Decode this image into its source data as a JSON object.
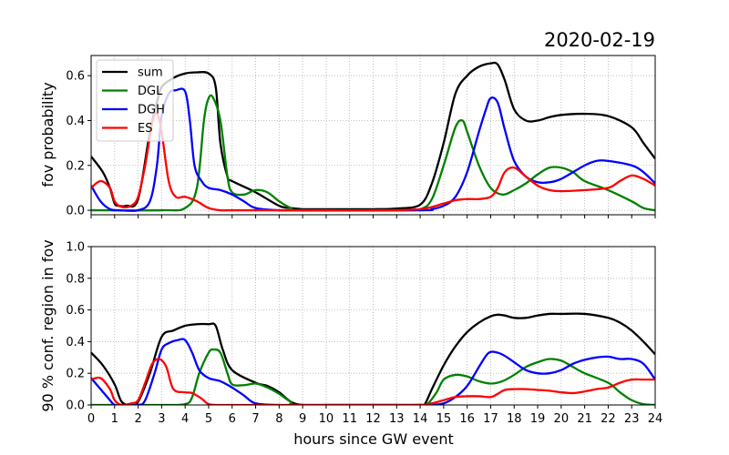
{
  "chart_data": [
    {
      "type": "line",
      "title": "2020-02-19",
      "ylabel": "fov probability",
      "xlabel": "",
      "xlim": [
        0,
        24
      ],
      "ylim": [
        -0.02,
        0.69
      ],
      "yticks": [
        "0.0",
        "0.2",
        "0.4",
        "0.6"
      ],
      "ytick_values": [
        0,
        0.2,
        0.4,
        0.6
      ],
      "grid": true,
      "legend_placement": "top-left",
      "series": [
        {
          "name": "sum",
          "color": "#000000",
          "x": [
            0,
            0.5,
            0.8,
            1,
            1.2,
            1.5,
            2,
            2.5,
            2.8,
            3,
            3.5,
            4,
            4.5,
            5,
            5.3,
            5.5,
            5.8,
            6,
            7,
            8,
            8.5,
            9,
            10,
            11,
            12,
            13,
            14,
            14.5,
            15,
            15.5,
            16,
            16.5,
            17,
            17.3,
            17.6,
            18,
            18.5,
            19,
            19.5,
            20,
            21,
            22,
            23,
            23.5,
            24
          ],
          "y": [
            0.24,
            0.17,
            0.1,
            0.03,
            0.02,
            0.02,
            0.05,
            0.35,
            0.48,
            0.55,
            0.59,
            0.61,
            0.615,
            0.61,
            0.55,
            0.3,
            0.15,
            0.13,
            0.08,
            0.02,
            0.01,
            0.005,
            0.005,
            0.005,
            0.005,
            0.008,
            0.025,
            0.12,
            0.3,
            0.52,
            0.6,
            0.64,
            0.655,
            0.65,
            0.58,
            0.45,
            0.4,
            0.4,
            0.415,
            0.425,
            0.43,
            0.42,
            0.37,
            0.3,
            0.23
          ]
        },
        {
          "name": "DGL",
          "color": "#008000",
          "x": [
            0,
            3,
            4,
            4.5,
            4.8,
            5,
            5.2,
            5.5,
            5.8,
            6,
            6.5,
            7,
            7.5,
            8,
            8.5,
            9,
            13,
            14,
            14.5,
            15,
            15.5,
            15.8,
            16,
            16.5,
            17,
            17.5,
            18,
            18.5,
            19,
            19.5,
            20,
            20.5,
            21,
            22,
            23,
            23.5,
            24
          ],
          "y": [
            0,
            0,
            0.01,
            0.1,
            0.4,
            0.5,
            0.5,
            0.4,
            0.15,
            0.08,
            0.07,
            0.09,
            0.08,
            0.04,
            0.01,
            0,
            0,
            0.005,
            0.05,
            0.2,
            0.37,
            0.4,
            0.35,
            0.2,
            0.1,
            0.07,
            0.09,
            0.12,
            0.16,
            0.19,
            0.19,
            0.17,
            0.13,
            0.09,
            0.04,
            0.01,
            0
          ]
        },
        {
          "name": "DGH",
          "color": "#0000ff",
          "x": [
            0,
            0.4,
            0.8,
            1.2,
            2,
            2.5,
            2.8,
            3,
            3.3,
            3.6,
            4,
            4.2,
            4.4,
            4.7,
            5,
            5.5,
            6,
            6.5,
            7,
            8,
            9,
            14,
            14.5,
            15,
            15.5,
            16,
            16.5,
            16.8,
            17,
            17.3,
            17.6,
            18,
            18.5,
            19,
            19.5,
            20,
            21,
            21.5,
            22,
            23,
            23.5,
            24
          ],
          "y": [
            0.11,
            0.04,
            0.005,
            0,
            0,
            0.04,
            0.2,
            0.42,
            0.52,
            0.535,
            0.53,
            0.4,
            0.2,
            0.13,
            0.1,
            0.09,
            0.07,
            0.04,
            0.01,
            0,
            0,
            0,
            0.005,
            0.02,
            0.06,
            0.17,
            0.35,
            0.45,
            0.5,
            0.48,
            0.36,
            0.22,
            0.15,
            0.125,
            0.125,
            0.14,
            0.2,
            0.22,
            0.22,
            0.2,
            0.17,
            0.12
          ]
        },
        {
          "name": "ES",
          "color": "#ff0000",
          "x": [
            0,
            0.4,
            0.8,
            1,
            1.3,
            1.7,
            2,
            2.3,
            2.6,
            2.8,
            3,
            3.3,
            3.6,
            4,
            4.5,
            5,
            5.5,
            6,
            8,
            10,
            12,
            14,
            15,
            15.5,
            16,
            16.5,
            17,
            17.3,
            17.6,
            18,
            18.5,
            19,
            19.5,
            20,
            21,
            22,
            22.5,
            23,
            23.5,
            24
          ],
          "y": [
            0.1,
            0.13,
            0.1,
            0.04,
            0.015,
            0.02,
            0.06,
            0.2,
            0.39,
            0.43,
            0.35,
            0.13,
            0.06,
            0.06,
            0.04,
            0.01,
            0,
            0,
            0,
            0,
            0,
            0.005,
            0.03,
            0.045,
            0.05,
            0.05,
            0.06,
            0.1,
            0.17,
            0.19,
            0.15,
            0.11,
            0.09,
            0.085,
            0.09,
            0.1,
            0.13,
            0.155,
            0.14,
            0.11
          ]
        }
      ]
    },
    {
      "type": "line",
      "title": "",
      "ylabel": "90 % conf. region in fov",
      "xlabel": "hours since GW event",
      "xlim": [
        0,
        24
      ],
      "ylim": [
        0,
        1.0
      ],
      "xticks": [
        "0",
        "1",
        "2",
        "3",
        "4",
        "5",
        "6",
        "7",
        "8",
        "9",
        "10",
        "11",
        "12",
        "13",
        "14",
        "15",
        "16",
        "17",
        "18",
        "19",
        "20",
        "21",
        "22",
        "23",
        "24"
      ],
      "xtick_values": [
        0,
        1,
        2,
        3,
        4,
        5,
        6,
        7,
        8,
        9,
        10,
        11,
        12,
        13,
        14,
        15,
        16,
        17,
        18,
        19,
        20,
        21,
        22,
        23,
        24
      ],
      "yticks": [
        "0.0",
        "0.2",
        "0.4",
        "0.6",
        "0.8",
        "1.0"
      ],
      "ytick_values": [
        0,
        0.2,
        0.4,
        0.6,
        0.8,
        1.0
      ],
      "grid": true,
      "series": [
        {
          "name": "sum",
          "color": "#000000",
          "x": [
            0,
            0.5,
            1,
            1.3,
            1.7,
            2,
            2.5,
            3,
            3.5,
            4,
            4.5,
            5,
            5.3,
            5.6,
            6,
            7,
            7.5,
            8,
            8.5,
            9,
            10,
            12,
            14,
            14.2,
            14.5,
            15,
            15.5,
            16,
            16.5,
            17,
            17.3,
            17.6,
            18,
            18.5,
            19,
            19.5,
            20,
            21,
            22,
            22.5,
            23,
            23.5,
            24
          ],
          "y": [
            0.33,
            0.25,
            0.13,
            0.02,
            0,
            0.02,
            0.2,
            0.43,
            0.47,
            0.5,
            0.51,
            0.51,
            0.5,
            0.35,
            0.22,
            0.14,
            0.12,
            0.08,
            0.02,
            0,
            0,
            0,
            0,
            0.005,
            0.1,
            0.25,
            0.37,
            0.46,
            0.52,
            0.56,
            0.57,
            0.565,
            0.55,
            0.55,
            0.565,
            0.575,
            0.575,
            0.575,
            0.55,
            0.52,
            0.47,
            0.4,
            0.32
          ]
        },
        {
          "name": "DGL",
          "color": "#008000",
          "x": [
            0,
            3,
            4,
            4.3,
            4.6,
            5,
            5.2,
            5.5,
            5.8,
            6,
            6.5,
            7,
            7.5,
            8,
            8.5,
            9,
            14,
            14.3,
            14.7,
            15,
            15.5,
            16,
            16.5,
            17,
            17.5,
            18,
            18.5,
            19,
            19.5,
            20,
            20.5,
            21,
            22,
            22.5,
            23,
            23.5,
            24
          ],
          "y": [
            0,
            0,
            0.005,
            0.05,
            0.2,
            0.33,
            0.35,
            0.33,
            0.2,
            0.13,
            0.125,
            0.135,
            0.11,
            0.07,
            0.02,
            0,
            0,
            0.005,
            0.08,
            0.16,
            0.19,
            0.18,
            0.15,
            0.135,
            0.15,
            0.19,
            0.24,
            0.27,
            0.29,
            0.28,
            0.24,
            0.2,
            0.14,
            0.08,
            0.03,
            0.005,
            0
          ]
        },
        {
          "name": "DGH",
          "color": "#0000ff",
          "x": [
            0,
            0.4,
            0.8,
            1,
            1.3,
            2,
            2.3,
            2.7,
            3,
            3.3,
            3.7,
            4,
            4.3,
            4.6,
            5,
            5.5,
            6,
            6.5,
            7,
            8,
            9,
            14,
            14.5,
            15,
            15.5,
            16,
            16.5,
            16.8,
            17,
            17.3,
            17.6,
            18,
            18.5,
            19,
            19.5,
            20,
            20.5,
            21,
            21.5,
            22,
            22.5,
            23,
            23.5,
            24
          ],
          "y": [
            0.17,
            0.1,
            0.03,
            0,
            0,
            0,
            0.03,
            0.2,
            0.35,
            0.39,
            0.41,
            0.41,
            0.33,
            0.22,
            0.17,
            0.15,
            0.11,
            0.06,
            0.01,
            0,
            0,
            0,
            0,
            0.01,
            0.05,
            0.12,
            0.24,
            0.31,
            0.335,
            0.33,
            0.31,
            0.27,
            0.22,
            0.2,
            0.2,
            0.22,
            0.26,
            0.285,
            0.3,
            0.305,
            0.29,
            0.29,
            0.26,
            0.16
          ]
        },
        {
          "name": "ES",
          "color": "#ff0000",
          "x": [
            0,
            0.4,
            0.8,
            1,
            1.3,
            1.7,
            2,
            2.3,
            2.6,
            2.9,
            3.2,
            3.5,
            4,
            4.3,
            4.7,
            5,
            5.5,
            6,
            8,
            10,
            12,
            14,
            14.5,
            15,
            15.5,
            16,
            16.5,
            17,
            17.3,
            17.6,
            18,
            18.5,
            19,
            19.5,
            20,
            20.5,
            21,
            21.5,
            22,
            22.5,
            23,
            23.5,
            24
          ],
          "y": [
            0.16,
            0.17,
            0.1,
            0.03,
            0,
            0.01,
            0.03,
            0.14,
            0.26,
            0.29,
            0.24,
            0.1,
            0.08,
            0.075,
            0.04,
            0.005,
            0,
            0,
            0,
            0,
            0,
            0,
            0.01,
            0.03,
            0.05,
            0.055,
            0.055,
            0.05,
            0.07,
            0.095,
            0.1,
            0.1,
            0.095,
            0.09,
            0.08,
            0.075,
            0.085,
            0.1,
            0.11,
            0.14,
            0.16,
            0.16,
            0.16
          ]
        }
      ]
    }
  ]
}
